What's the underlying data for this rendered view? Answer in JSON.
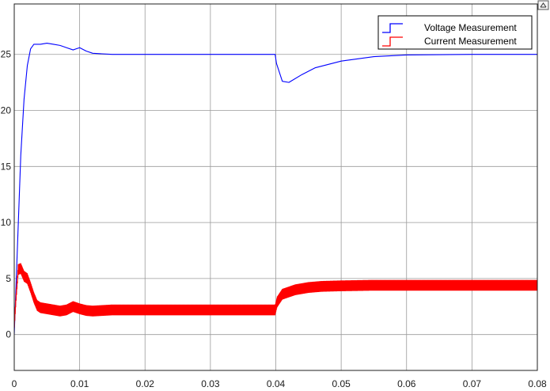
{
  "chart_data": {
    "type": "line",
    "xlim": [
      0,
      0.08
    ],
    "ylim": [
      -3.2,
      29.5
    ],
    "x_ticks": [
      0,
      0.01,
      0.02,
      0.03,
      0.04,
      0.05,
      0.06,
      0.07,
      0.08
    ],
    "y_ticks": [
      0,
      5,
      10,
      15,
      20,
      25
    ],
    "x_tick_labels": [
      "0",
      "0.01",
      "0.02",
      "0.03",
      "0.04",
      "0.05",
      "0.06",
      "0.07",
      "0.08"
    ],
    "y_tick_labels": [
      "0",
      "5",
      "10",
      "15",
      "20",
      "25"
    ],
    "grid": true,
    "legend_position": "top-right",
    "series": [
      {
        "name": "Voltage Measurement",
        "color": "#0000ff",
        "x": [
          0,
          0.0005,
          0.001,
          0.0015,
          0.002,
          0.0025,
          0.003,
          0.004,
          0.005,
          0.006,
          0.007,
          0.008,
          0.009,
          0.0095,
          0.01,
          0.011,
          0.012,
          0.015,
          0.02,
          0.03,
          0.0399,
          0.0401,
          0.041,
          0.042,
          0.044,
          0.046,
          0.05,
          0.055,
          0.06,
          0.07,
          0.08
        ],
        "y": [
          0,
          8,
          16,
          21,
          24,
          25.5,
          25.9,
          25.9,
          26.0,
          25.9,
          25.8,
          25.6,
          25.4,
          25.5,
          25.6,
          25.3,
          25.1,
          25.0,
          25.0,
          25.0,
          25.0,
          24.2,
          22.6,
          22.5,
          23.2,
          23.8,
          24.4,
          24.8,
          24.95,
          25.0,
          25.0
        ]
      },
      {
        "name": "Current Measurement",
        "color": "#ff0000",
        "x": [
          0,
          0.0003,
          0.0006,
          0.001,
          0.0015,
          0.002,
          0.0025,
          0.003,
          0.0035,
          0.004,
          0.005,
          0.006,
          0.007,
          0.008,
          0.009,
          0.01,
          0.011,
          0.012,
          0.015,
          0.02,
          0.03,
          0.0399,
          0.0402,
          0.041,
          0.042,
          0.043,
          0.045,
          0.047,
          0.05,
          0.055,
          0.06,
          0.07,
          0.08
        ],
        "y": [
          0.8,
          3.5,
          5.8,
          5.9,
          5.2,
          5.0,
          4.2,
          3.3,
          2.6,
          2.4,
          2.3,
          2.2,
          2.1,
          2.2,
          2.5,
          2.3,
          2.15,
          2.1,
          2.2,
          2.2,
          2.2,
          2.2,
          2.9,
          3.6,
          3.8,
          4.0,
          4.2,
          4.3,
          4.35,
          4.4,
          4.4,
          4.4,
          4.4
        ],
        "ripple": 0.45
      }
    ]
  }
}
